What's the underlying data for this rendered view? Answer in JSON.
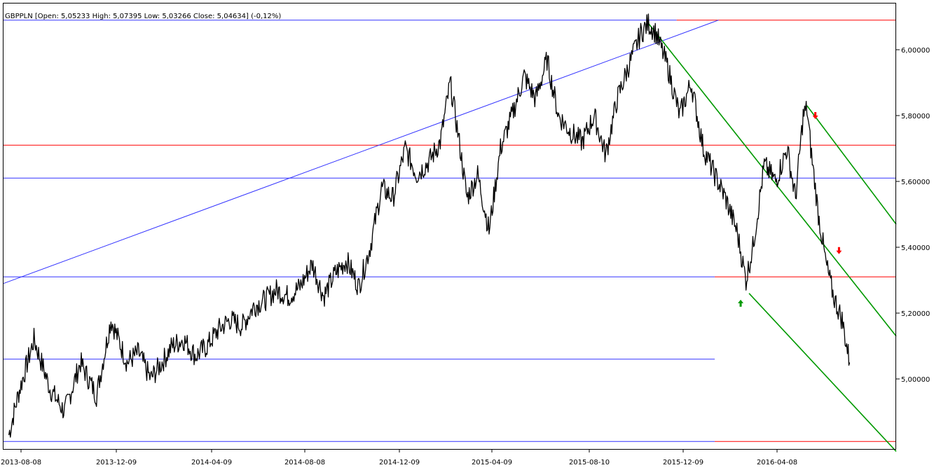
{
  "chart_data": {
    "type": "line",
    "title": "GBPPLN [Open: 5,05233  High: 5,07395  Low: 5,03266  Close: 5,04634] (-0,12%)",
    "xlabel": "",
    "ylabel": "",
    "ylim": [
      4.8,
      6.1
    ],
    "x_ticks": [
      "2013-08-08",
      "2013-12-09",
      "2014-04-09",
      "2014-08-08",
      "2014-12-09",
      "2015-04-09",
      "2015-08-10",
      "2015-12-09",
      "2016-04-08"
    ],
    "y_ticks": [
      {
        "value": 6.0,
        "label": "6,00000"
      },
      {
        "value": 5.8,
        "label": "5,80000"
      },
      {
        "value": 5.6,
        "label": "5,60000"
      },
      {
        "value": 5.4,
        "label": "5,40000"
      },
      {
        "value": 5.2,
        "label": "5,20000"
      },
      {
        "value": 5.0,
        "label": "5,00000"
      }
    ],
    "grid": false,
    "series": [
      {
        "color": "#000000",
        "x": [
          "2013-08-08",
          "2013-08-20",
          "2013-09-10",
          "2013-10-01",
          "2013-10-20",
          "2013-11-10",
          "2013-12-01",
          "2013-12-20",
          "2014-01-10",
          "2014-01-25",
          "2014-02-10",
          "2014-02-25",
          "2014-03-10",
          "2014-03-25",
          "2014-04-10",
          "2014-04-25",
          "2014-05-10",
          "2014-05-25",
          "2014-06-10",
          "2014-06-25",
          "2014-07-10",
          "2014-07-25",
          "2014-08-10",
          "2014-08-25",
          "2014-09-10",
          "2014-09-25",
          "2014-10-10",
          "2014-10-25",
          "2014-11-10",
          "2014-11-25",
          "2014-12-10",
          "2014-12-25",
          "2015-01-10",
          "2015-01-25",
          "2015-02-10",
          "2015-02-25",
          "2015-03-10",
          "2015-03-20",
          "2015-04-01",
          "2015-04-15",
          "2015-04-30",
          "2015-05-15",
          "2015-05-30",
          "2015-06-15",
          "2015-06-30",
          "2015-07-15",
          "2015-07-30",
          "2015-08-15",
          "2015-08-30",
          "2015-09-15",
          "2015-09-30",
          "2015-10-15",
          "2015-10-30",
          "2015-11-15",
          "2015-11-25",
          "2015-12-05",
          "2015-12-20",
          "2016-01-05",
          "2016-01-20",
          "2016-02-05",
          "2016-02-20",
          "2016-03-05",
          "2016-03-20",
          "2016-04-01",
          "2016-04-10",
          "2016-04-25",
          "2016-05-10",
          "2016-05-25",
          "2016-06-05",
          "2016-06-15",
          "2016-06-20",
          "2016-06-25",
          "2016-07-05",
          "2016-07-15",
          "2016-07-25",
          "2016-08-05",
          "2016-08-15"
        ],
        "values": [
          4.83,
          4.95,
          5.12,
          4.97,
          4.9,
          5.05,
          4.95,
          5.18,
          5.05,
          5.08,
          5.0,
          5.05,
          5.1,
          5.12,
          5.07,
          5.1,
          5.15,
          5.18,
          5.16,
          5.22,
          5.24,
          5.27,
          5.25,
          5.28,
          5.35,
          5.25,
          5.32,
          5.36,
          5.28,
          5.4,
          5.58,
          5.55,
          5.7,
          5.62,
          5.66,
          5.72,
          5.9,
          5.75,
          5.55,
          5.62,
          5.45,
          5.7,
          5.8,
          5.92,
          5.85,
          5.97,
          5.8,
          5.75,
          5.72,
          5.8,
          5.68,
          5.85,
          5.95,
          6.05,
          6.08,
          6.05,
          5.95,
          5.8,
          5.9,
          5.7,
          5.62,
          5.55,
          5.45,
          5.3,
          5.4,
          5.65,
          5.6,
          5.7,
          5.55,
          5.8,
          5.82,
          5.7,
          5.5,
          5.35,
          5.25,
          5.18,
          5.05
        ]
      }
    ],
    "horizontal_lines": [
      {
        "value": 6.09,
        "color": "#3333ff",
        "x_start": "2013-08-01",
        "x_end": "2016-01-01"
      },
      {
        "value": 6.09,
        "color": "#ff0000",
        "x_start": "2016-01-01",
        "x_end": "2016-10-15"
      },
      {
        "value": 5.71,
        "color": "#ff0000",
        "x_start": "2013-08-01",
        "x_end": "2016-10-15"
      },
      {
        "value": 5.61,
        "color": "#3333ff",
        "x_start": "2013-08-01",
        "x_end": "2016-10-15"
      },
      {
        "value": 5.31,
        "color": "#3333ff",
        "x_start": "2013-08-01",
        "x_end": "2016-02-20"
      },
      {
        "value": 5.31,
        "color": "#ff0000",
        "x_start": "2016-02-20",
        "x_end": "2016-10-15"
      },
      {
        "value": 5.06,
        "color": "#3333ff",
        "x_start": "2013-08-01",
        "x_end": "2016-02-20"
      },
      {
        "value": 4.81,
        "color": "#3333ff",
        "x_start": "2013-08-01",
        "x_end": "2016-02-20"
      },
      {
        "value": 4.81,
        "color": "#ff0000",
        "x_start": "2016-02-20",
        "x_end": "2016-10-15"
      }
    ],
    "trend_lines": [
      {
        "color": "#3333ff",
        "from": [
          "2013-08-01",
          5.29
        ],
        "to": [
          "2016-02-25",
          6.09
        ]
      },
      {
        "color": "#009900",
        "from": [
          "2015-11-25",
          6.08
        ],
        "to": [
          "2016-10-15",
          5.13
        ]
      },
      {
        "color": "#009900",
        "from": [
          "2016-06-20",
          5.83
        ],
        "to": [
          "2016-10-15",
          5.47
        ]
      },
      {
        "color": "#009900",
        "from": [
          "2016-04-05",
          5.26
        ],
        "to": [
          "2016-10-15",
          4.78
        ]
      }
    ],
    "markers": [
      {
        "kind": "arrow-down",
        "color": "#ff0000",
        "x": "2016-07-01",
        "y": 5.8
      },
      {
        "kind": "arrow-down",
        "color": "#ff0000",
        "x": "2016-08-01",
        "y": 5.39
      },
      {
        "kind": "arrow-up",
        "color": "#009900",
        "x": "2016-03-25",
        "y": 5.23
      }
    ]
  }
}
